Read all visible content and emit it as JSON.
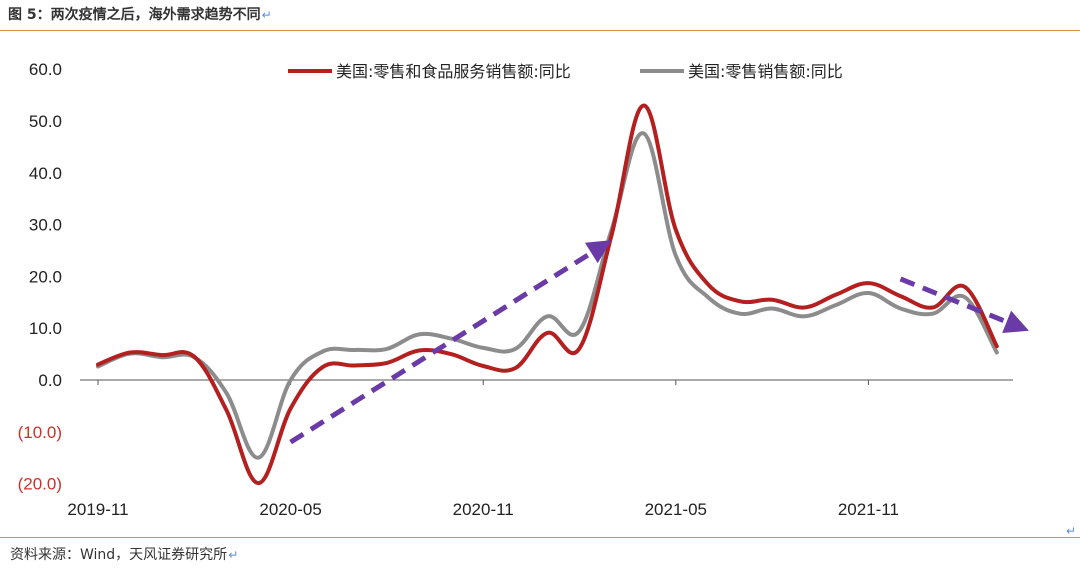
{
  "figure": {
    "title": "图 5：两次疫情之后，海外需求趋势不同",
    "source": "资料来源：Wind，天风证券研究所"
  },
  "colors": {
    "series_red": "#b3201f",
    "series_gray": "#8c8c8c",
    "arrow": "#6a3aa6",
    "rule": "#e08a3c",
    "negative_label": "#d0302a"
  },
  "chart_data": {
    "type": "line",
    "title": "",
    "xlabel": "",
    "ylabel": "",
    "ylim": [
      -20,
      60
    ],
    "yticks": [
      {
        "value": 60,
        "label": "60.0"
      },
      {
        "value": 50,
        "label": "50.0"
      },
      {
        "value": 40,
        "label": "40.0"
      },
      {
        "value": 30,
        "label": "30.0"
      },
      {
        "value": 20,
        "label": "20.0"
      },
      {
        "value": 10,
        "label": "10.0"
      },
      {
        "value": 0,
        "label": "0.0"
      },
      {
        "value": -10,
        "label": "(10.0)"
      },
      {
        "value": -20,
        "label": "(20.0)"
      }
    ],
    "x": [
      "2019-11",
      "2019-12",
      "2020-01",
      "2020-02",
      "2020-03",
      "2020-04",
      "2020-05",
      "2020-06",
      "2020-07",
      "2020-08",
      "2020-09",
      "2020-10",
      "2020-11",
      "2020-12",
      "2021-01",
      "2021-02",
      "2021-03",
      "2021-04",
      "2021-05",
      "2021-06",
      "2021-07",
      "2021-08",
      "2021-09",
      "2021-10",
      "2021-11",
      "2021-12",
      "2022-01",
      "2022-02",
      "2022-03"
    ],
    "xticks": [
      "2019-11",
      "2020-05",
      "2020-11",
      "2021-05",
      "2021-11"
    ],
    "legend_position": "top",
    "series": [
      {
        "name": "美国:零售和食品服务销售额:同比",
        "color": "#b3201f",
        "values": [
          3.0,
          5.3,
          4.8,
          4.5,
          -5.8,
          -19.9,
          -5.5,
          2.5,
          2.8,
          3.3,
          5.7,
          5.0,
          2.7,
          2.3,
          9.1,
          6.1,
          28.0,
          53.0,
          29.0,
          18.5,
          15.2,
          15.5,
          14.0,
          16.5,
          18.7,
          16.2,
          14.0,
          18.0,
          6.5
        ]
      },
      {
        "name": "美国:零售销售额:同比",
        "color": "#8c8c8c",
        "values": [
          2.6,
          5.1,
          4.4,
          4.4,
          -2.5,
          -15.0,
          0.0,
          5.5,
          5.8,
          6.0,
          8.8,
          8.0,
          6.2,
          6.0,
          12.3,
          9.5,
          29.0,
          47.6,
          24.0,
          16.0,
          12.8,
          13.8,
          12.3,
          14.5,
          16.8,
          13.8,
          12.8,
          16.0,
          5.3
        ]
      }
    ],
    "annotations": [
      {
        "type": "trend-arrow",
        "from": [
          "2020-05",
          -12
        ],
        "to": [
          "2021-03",
          27
        ],
        "color": "#6a3aa6"
      },
      {
        "type": "trend-arrow",
        "from": [
          "2021-12",
          19.5
        ],
        "to": [
          "2022-04",
          9.5
        ],
        "color": "#6a3aa6"
      }
    ]
  }
}
